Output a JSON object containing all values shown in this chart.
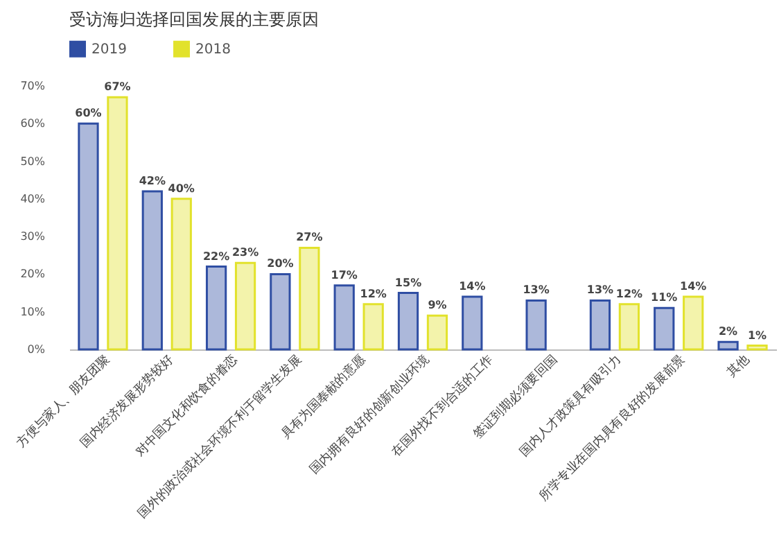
{
  "chart_data": {
    "type": "bar",
    "title": "受访海归选择回国发展的主要原因",
    "categories": [
      "方便与家人、朋友团聚",
      "国内经济发展形势较好",
      "对中国文化和饮食的眷恋",
      "国外的政治或社会环境不利于留学生发展",
      "具有为国奉献的意愿",
      "国内拥有良好的创新创业环境",
      "在国外找不到合适的工作",
      "签证到期必须要回国",
      "国内人才政策具有吸引力",
      "所学专业在国内具有良好的发展前景",
      "其他"
    ],
    "series": [
      {
        "name": "2019",
        "color": "#2f4ea3",
        "values": [
          60,
          42,
          22,
          20,
          17,
          15,
          14,
          13,
          13,
          11,
          2
        ],
        "value_labels": [
          "60%",
          "42%",
          "22%",
          "20%",
          "17%",
          "15%",
          "14%",
          "13%",
          "13%",
          "11%",
          "2%"
        ]
      },
      {
        "name": "2018",
        "color": "#e2e22c",
        "values": [
          67,
          40,
          23,
          27,
          12,
          9,
          null,
          null,
          12,
          14,
          1
        ],
        "value_labels": [
          "67%",
          "40%",
          "23%",
          "27%",
          "12%",
          "9%",
          null,
          null,
          "12%",
          "14%",
          "1%"
        ]
      }
    ],
    "ylim": [
      0,
      70
    ],
    "yticks": [
      {
        "value": 0,
        "label": "0%"
      },
      {
        "value": 10,
        "label": "10%"
      },
      {
        "value": 20,
        "label": "20%"
      },
      {
        "value": 30,
        "label": "30%"
      },
      {
        "value": 40,
        "label": "40%"
      },
      {
        "value": 50,
        "label": "50%"
      },
      {
        "value": 60,
        "label": "60%"
      },
      {
        "value": 70,
        "label": "70%"
      }
    ],
    "legend": "top left",
    "grid": false
  }
}
